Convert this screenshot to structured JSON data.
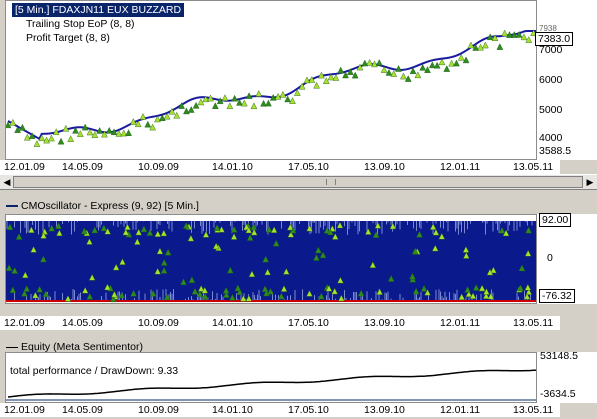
{
  "main_chart": {
    "title": "[5 Min.] FDAXJN11 EUX BUZZARD",
    "legend": [
      "Trailing Stop EoP  (8, 8)",
      "Profit Target  (8, 8)"
    ],
    "y_ticks": [
      "7000",
      "6000",
      "5000",
      "4000",
      "3588.5"
    ],
    "y_top_clip": "7938",
    "current_value": "7383.0",
    "x_ticks": [
      "12.01.09",
      "14.05.09",
      "10.09.09",
      "14.01.10",
      "17.05.10",
      "13.09.10",
      "12.01.11",
      "13.05.11"
    ]
  },
  "oscillator": {
    "title": "CMOscillator - Express  (9, 92) [5 Min.]",
    "upper_value": "92.00",
    "zero_label": "0",
    "lower_value": "-76.32",
    "x_ticks": [
      "12.01.09",
      "14.05.09",
      "10.09.09",
      "14.01.10",
      "17.05.10",
      "13.09.10",
      "12.01.11",
      "13.05.11"
    ]
  },
  "equity": {
    "title": "Equity (Meta Sentimentor)",
    "stats_label": "total performance / DrawDown: 9.33",
    "max_value": "53148.5",
    "min_value": "-3634.5",
    "x_ticks": [
      "12.01.09",
      "14.05.09",
      "10.09.09",
      "14.01.10",
      "17.05.10",
      "13.09.10",
      "12.01.11",
      "13.05.11"
    ]
  },
  "colors": {
    "price_line": "#1a1aa0",
    "marker_green": "#2e8b1e",
    "marker_light": "#a8e030",
    "oscillator_fill": "#0a1a8c",
    "lower_line": "#cc0000",
    "title_bg": "#0a246a"
  },
  "scrollbar": {
    "left_icon": "arrow-left-icon",
    "right_icon": "arrow-right-icon"
  }
}
